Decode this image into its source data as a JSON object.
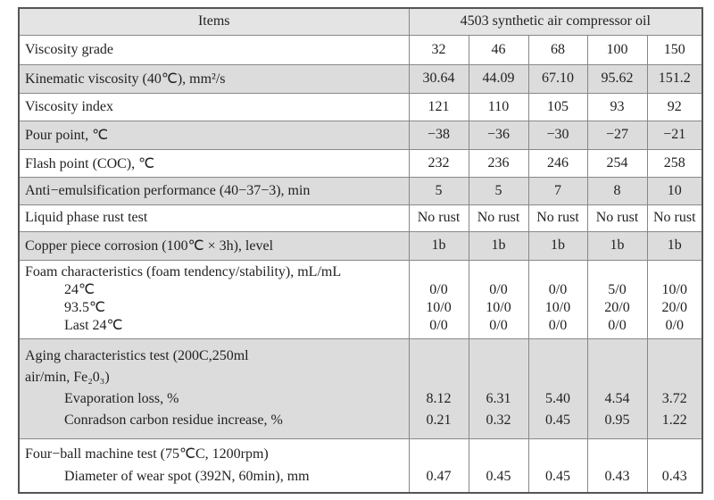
{
  "table": {
    "header": {
      "items": "Items",
      "product": "4503 synthetic air compressor oil"
    },
    "rows": [
      {
        "label": [
          "Viscosity grade"
        ],
        "values": [
          "32",
          "46",
          "68",
          "100",
          "150"
        ]
      },
      {
        "label": [
          "Kinematic viscosity (40℃), mm²/s"
        ],
        "values": [
          "30.64",
          "44.09",
          "67.10",
          "95.62",
          "151.2"
        ]
      },
      {
        "label": [
          "Viscosity index"
        ],
        "values": [
          "121",
          "110",
          "105",
          "93",
          "92"
        ]
      },
      {
        "label": [
          "Pour point, ℃"
        ],
        "values": [
          "−38",
          "−36",
          "−30",
          "−27",
          "−21"
        ]
      },
      {
        "label": [
          "Flash point (COC), ℃"
        ],
        "values": [
          "232",
          "236",
          "246",
          "254",
          "258"
        ]
      },
      {
        "label": [
          "Anti−emulsification performance (40−37−3), min"
        ],
        "values": [
          "5",
          "5",
          "7",
          "8",
          "10"
        ]
      },
      {
        "label": [
          "Liquid phase rust test"
        ],
        "values": [
          "No rust",
          "No rust",
          "No rust",
          "No rust",
          "No rust"
        ]
      },
      {
        "label": [
          "Copper piece corrosion (100℃ × 3h), level"
        ],
        "values": [
          "1b",
          "1b",
          "1b",
          "1b",
          "1b"
        ]
      },
      {
        "label": [
          "Foam characteristics (foam tendency/stability), mL/mL"
        ],
        "sub": [
          {
            "label": "24℃",
            "values": [
              "0/0",
              "0/0",
              "0/0",
              "5/0",
              "10/0"
            ]
          },
          {
            "label": "93.5℃",
            "values": [
              "10/0",
              "10/0",
              "10/0",
              "20/0",
              "20/0"
            ]
          },
          {
            "label": "Last 24℃",
            "values": [
              "0/0",
              "0/0",
              "0/0",
              "0/0",
              "0/0"
            ]
          }
        ]
      },
      {
        "label": [
          "Aging characteristics test (200C,250ml",
          "air/min, Fe₂0₃)"
        ],
        "sub": [
          {
            "label": "Evaporation loss, %",
            "values": [
              "8.12",
              "6.31",
              "5.40",
              "4.54",
              "3.72"
            ]
          },
          {
            "label": "Conradson carbon residue increase, %",
            "values": [
              "0.21",
              "0.32",
              "0.45",
              "0.95",
              "1.22"
            ]
          }
        ]
      },
      {
        "label": [
          "Four−ball machine test (75℃C, 1200rpm)"
        ],
        "sub": [
          {
            "label": "Diameter of wear spot (392N, 60min), mm",
            "values": [
              "0.47",
              "0.45",
              "0.45",
              "0.43",
              "0.43"
            ]
          }
        ]
      }
    ]
  }
}
